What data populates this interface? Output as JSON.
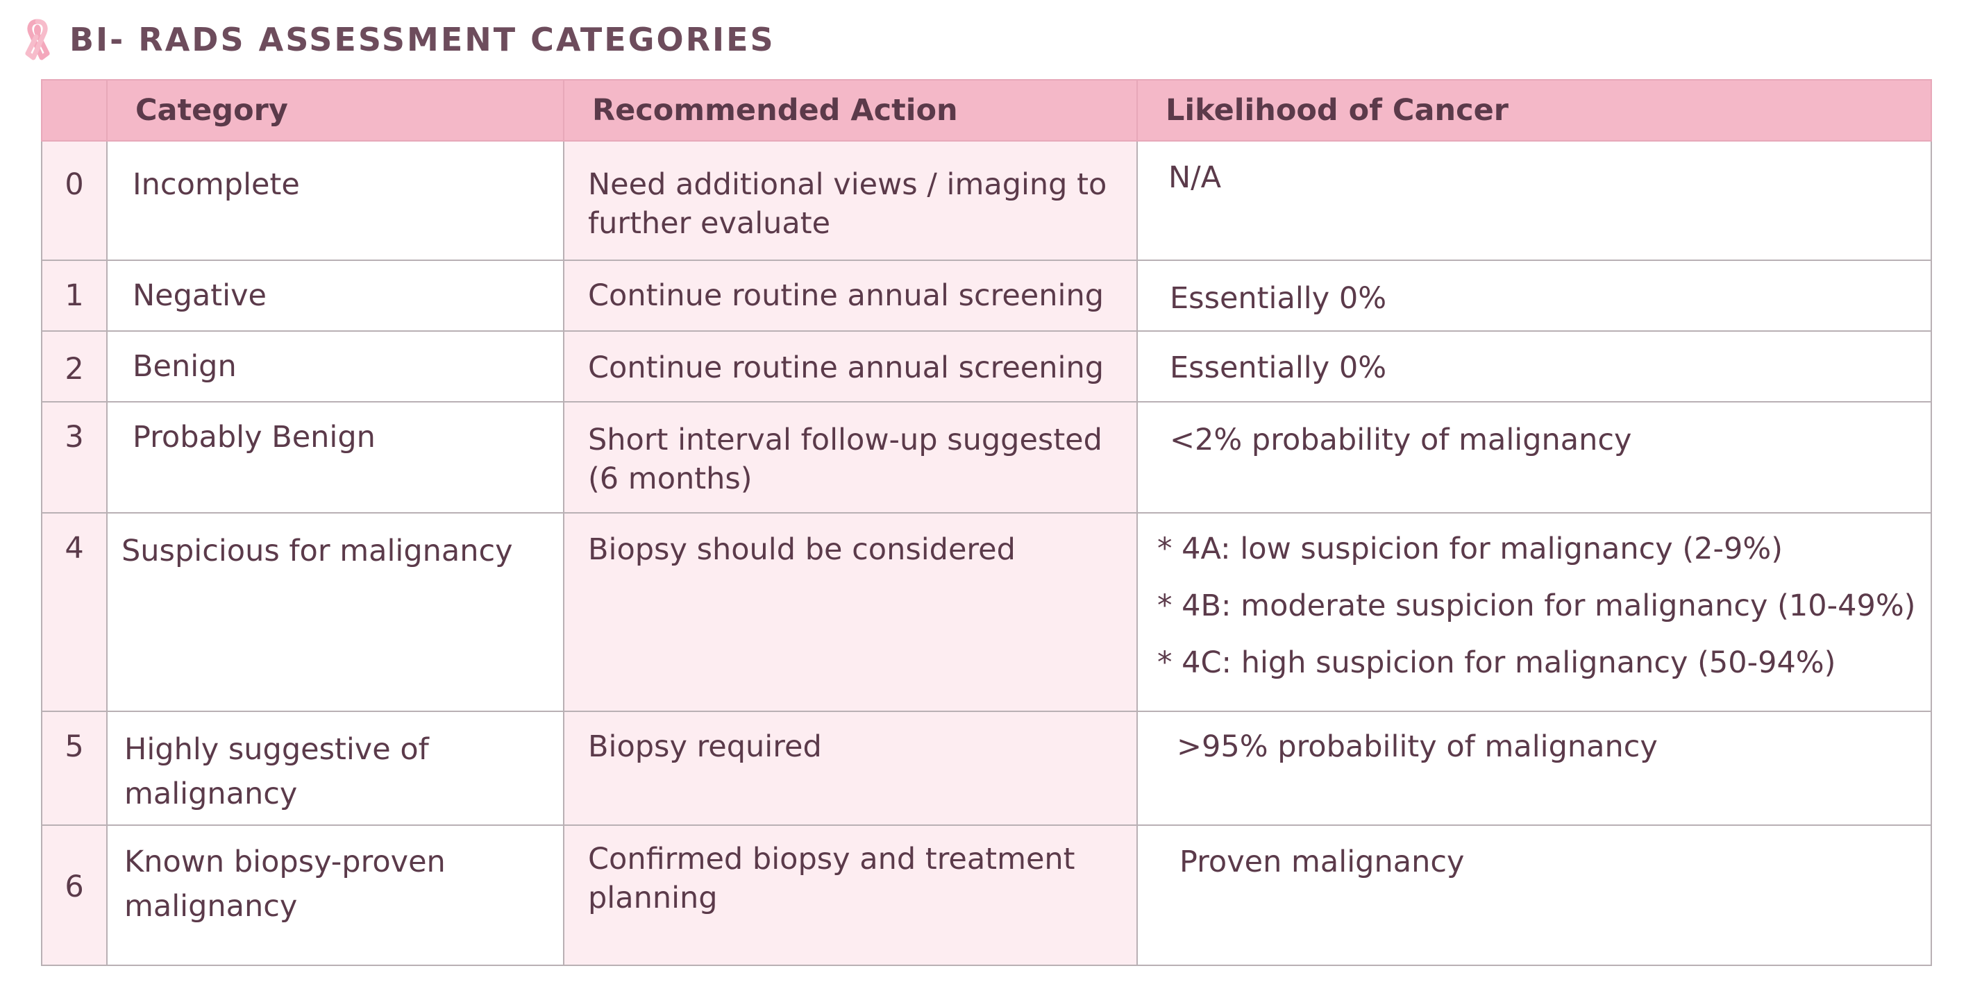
{
  "header": {
    "title": "BI- RADS ASSESSMENT CATEGORIES",
    "icon": "pink-ribbon-icon",
    "accent_color": "#f4b8c8"
  },
  "table": {
    "columns": [
      "",
      "Category",
      "Recommended Action",
      "Likelihood of Cancer"
    ],
    "rows": [
      {
        "num": "0",
        "category": "Incomplete",
        "action": "Need additional views / imaging to further evaluate",
        "likelihood": "N/A"
      },
      {
        "num": "1",
        "category": "Negative",
        "action": "Continue routine annual screening",
        "likelihood": "Essentially 0%"
      },
      {
        "num": "2",
        "category": "Benign",
        "action": "Continue routine annual screening",
        "likelihood": "Essentially 0%"
      },
      {
        "num": "3",
        "category": "Probably Benign",
        "action": "Short interval follow-up suggested (6 months)",
        "likelihood": "<2% probability of malignancy"
      },
      {
        "num": "4",
        "category": "Suspicious for malignancy",
        "action": "Biopsy should be considered",
        "likelihood_items": [
          "* 4A: low suspicion for malignancy (2-9%)",
          "* 4B: moderate suspicion for malignancy (10-49%)",
          "* 4C: high suspicion for malignancy (50-94%)"
        ]
      },
      {
        "num": "5",
        "category": "Highly suggestive of malignancy",
        "action": "Biopsy required",
        "likelihood": ">95% probability of malignancy"
      },
      {
        "num": "6",
        "category": "Known biopsy-proven malignancy",
        "action": "Confirmed biopsy and treatment planning",
        "likelihood": "Proven malignancy"
      }
    ]
  }
}
